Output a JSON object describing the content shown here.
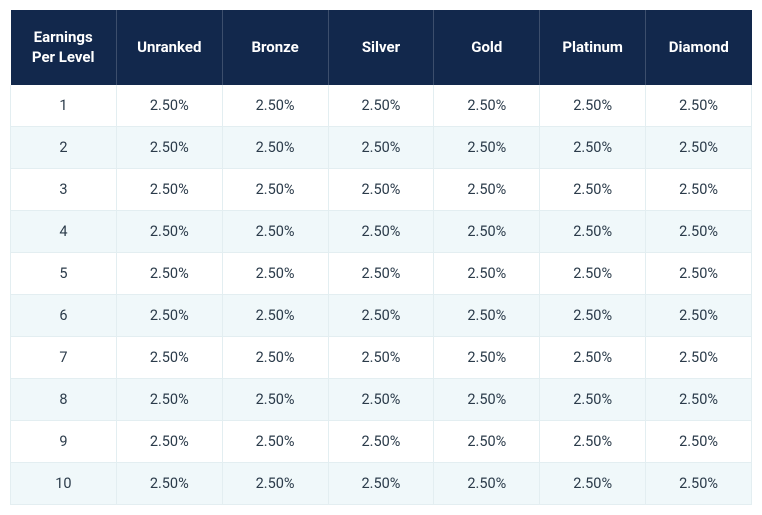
{
  "table": {
    "type": "table",
    "header_bg": "#12284c",
    "header_text_color": "#ffffff",
    "header_fontsize": 15,
    "header_fontweight": 700,
    "cell_text_color": "#2b3b4a",
    "cell_fontsize": 14.5,
    "row_bg_odd": "#ffffff",
    "row_bg_even": "#f0f8fa",
    "border_color": "#e3eef1",
    "columns": [
      "Earnings Per Level",
      "Unranked",
      "Bronze",
      "Silver",
      "Gold",
      "Platinum",
      "Diamond"
    ],
    "rows": [
      [
        "1",
        "2.50%",
        "2.50%",
        "2.50%",
        "2.50%",
        "2.50%",
        "2.50%"
      ],
      [
        "2",
        "2.50%",
        "2.50%",
        "2.50%",
        "2.50%",
        "2.50%",
        "2.50%"
      ],
      [
        "3",
        "2.50%",
        "2.50%",
        "2.50%",
        "2.50%",
        "2.50%",
        "2.50%"
      ],
      [
        "4",
        "2.50%",
        "2.50%",
        "2.50%",
        "2.50%",
        "2.50%",
        "2.50%"
      ],
      [
        "5",
        "2.50%",
        "2.50%",
        "2.50%",
        "2.50%",
        "2.50%",
        "2.50%"
      ],
      [
        "6",
        "2.50%",
        "2.50%",
        "2.50%",
        "2.50%",
        "2.50%",
        "2.50%"
      ],
      [
        "7",
        "2.50%",
        "2.50%",
        "2.50%",
        "2.50%",
        "2.50%",
        "2.50%"
      ],
      [
        "8",
        "2.50%",
        "2.50%",
        "2.50%",
        "2.50%",
        "2.50%",
        "2.50%"
      ],
      [
        "9",
        "2.50%",
        "2.50%",
        "2.50%",
        "2.50%",
        "2.50%",
        "2.50%"
      ],
      [
        "10",
        "2.50%",
        "2.50%",
        "2.50%",
        "2.50%",
        "2.50%",
        "2.50%"
      ]
    ]
  }
}
